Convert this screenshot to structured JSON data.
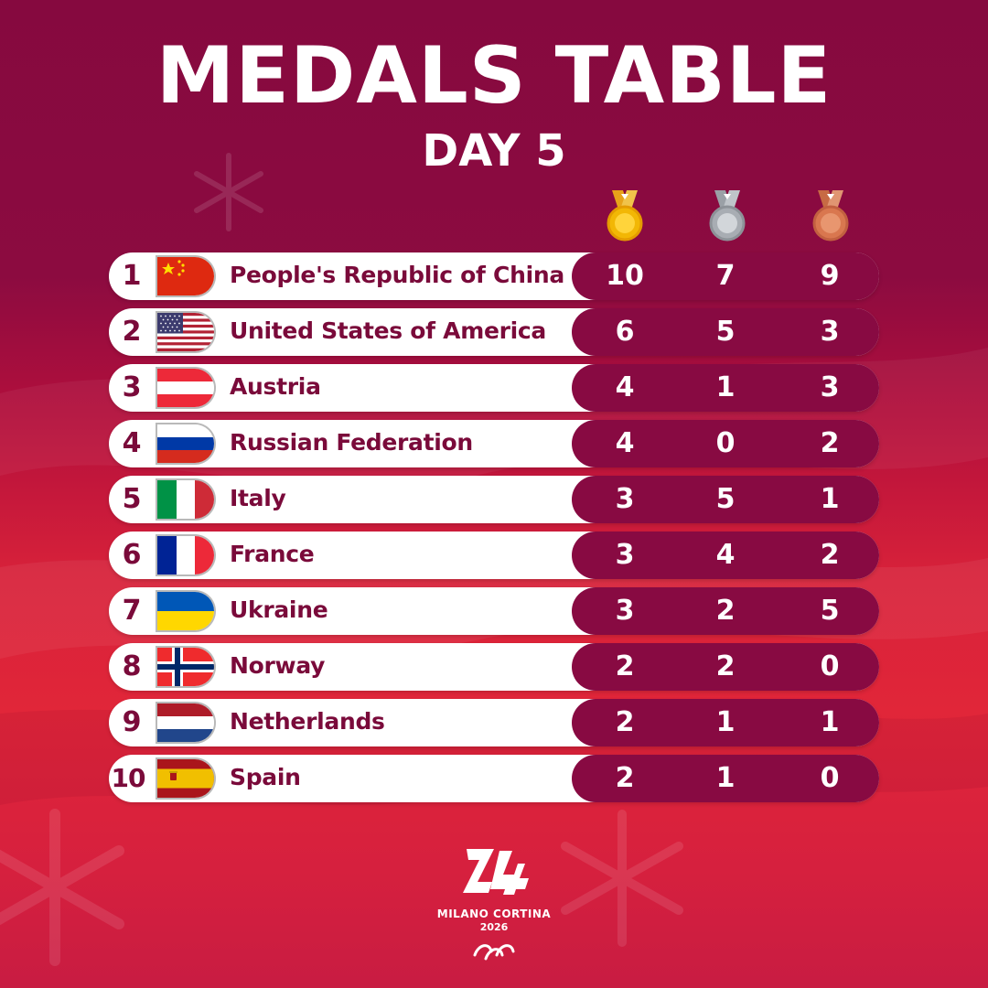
{
  "header": {
    "title": "MEDALS TABLE",
    "subtitle": "DAY 5"
  },
  "medal_icons": [
    {
      "name": "gold-medal-icon",
      "color": "#f2b705"
    },
    {
      "name": "silver-medal-icon",
      "color": "#a8adb3"
    },
    {
      "name": "bronze-medal-icon",
      "color": "#d9774f"
    }
  ],
  "table": {
    "columns": [
      "rank",
      "flag",
      "country",
      "gold",
      "silver",
      "bronze"
    ],
    "rows": [
      {
        "rank": "1",
        "country": "People's Republic of China",
        "flag": "china-flag-icon",
        "gold": "10",
        "silver": "7",
        "bronze": "9"
      },
      {
        "rank": "2",
        "country": "United States of America",
        "flag": "usa-flag-icon",
        "gold": "6",
        "silver": "5",
        "bronze": "3"
      },
      {
        "rank": "3",
        "country": "Austria",
        "flag": "austria-flag-icon",
        "gold": "4",
        "silver": "1",
        "bronze": "3"
      },
      {
        "rank": "4",
        "country": "Russian Federation",
        "flag": "russia-flag-icon",
        "gold": "4",
        "silver": "0",
        "bronze": "2"
      },
      {
        "rank": "5",
        "country": "Italy",
        "flag": "italy-flag-icon",
        "gold": "3",
        "silver": "5",
        "bronze": "1"
      },
      {
        "rank": "6",
        "country": "France",
        "flag": "france-flag-icon",
        "gold": "3",
        "silver": "4",
        "bronze": "2"
      },
      {
        "rank": "7",
        "country": "Ukraine",
        "flag": "ukraine-flag-icon",
        "gold": "3",
        "silver": "2",
        "bronze": "5"
      },
      {
        "rank": "8",
        "country": "Norway",
        "flag": "norway-flag-icon",
        "gold": "2",
        "silver": "2",
        "bronze": "0"
      },
      {
        "rank": "9",
        "country": "Netherlands",
        "flag": "netherlands-flag-icon",
        "gold": "2",
        "silver": "1",
        "bronze": "1"
      },
      {
        "rank": "10",
        "country": "Spain",
        "flag": "spain-flag-icon",
        "gold": "2",
        "silver": "1",
        "bronze": "0"
      }
    ]
  },
  "footer": {
    "logo_text": "MILANO CORTINA",
    "logo_year": "2026",
    "logo_icon": "milano-cortina-2026-logo",
    "paralympic_icon": "agitos-icon"
  },
  "colors": {
    "primary": "#880a42",
    "text_dark": "#7a0a3a",
    "background_top": "#86093f",
    "background_bottom": "#e12639"
  }
}
